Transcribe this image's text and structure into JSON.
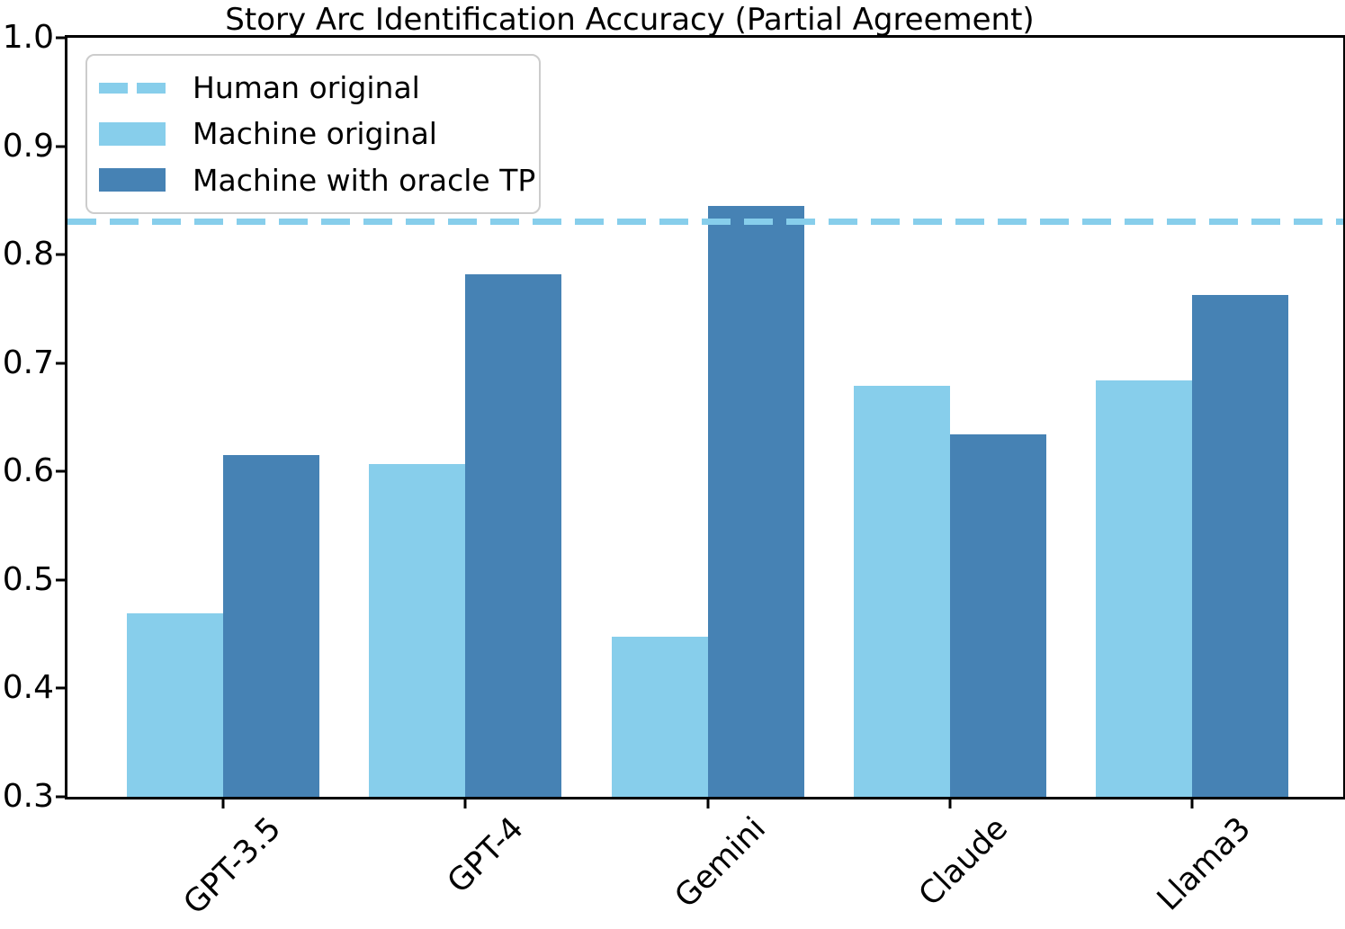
{
  "title": "Story Arc Identification Accuracy (Partial Agreement)",
  "colors": {
    "human_line": "#87CEEB",
    "machine_original": "#87CEEB",
    "machine_oracle": "#4682B4",
    "axis": "#000000",
    "legend_border": "#cccccc"
  },
  "legend": {
    "items": [
      {
        "label": "Human original",
        "swatch": "dashed-line",
        "color": "#87CEEB"
      },
      {
        "label": "Machine original",
        "swatch": "patch",
        "color": "#87CEEB"
      },
      {
        "label": "Machine with oracle TP",
        "swatch": "patch",
        "color": "#4682B4"
      }
    ]
  },
  "chart_data": {
    "type": "bar",
    "title": "Story Arc Identification Accuracy (Partial Agreement)",
    "categories": [
      "GPT-3.5",
      "GPT-4",
      "Gemini",
      "Claude",
      "Llama3"
    ],
    "series": [
      {
        "name": "Machine original",
        "color": "#87CEEB",
        "values": [
          0.469,
          0.607,
          0.448,
          0.679,
          0.684
        ]
      },
      {
        "name": "Machine with oracle TP",
        "color": "#4682B4",
        "values": [
          0.615,
          0.782,
          0.845,
          0.634,
          0.763
        ]
      }
    ],
    "reference_line": {
      "name": "Human original",
      "value": 0.83,
      "style": "dashed",
      "color": "#87CEEB"
    },
    "xlabel": "",
    "ylabel": "",
    "ylim": [
      0.3,
      1.0
    ],
    "ytick_labels": [
      "1.0",
      "0.9",
      "0.8",
      "0.7",
      "0.6",
      "0.5",
      "0.4",
      "0.3"
    ],
    "xtick_rotation_deg": 45,
    "grid": false,
    "legend_position": "upper left"
  }
}
